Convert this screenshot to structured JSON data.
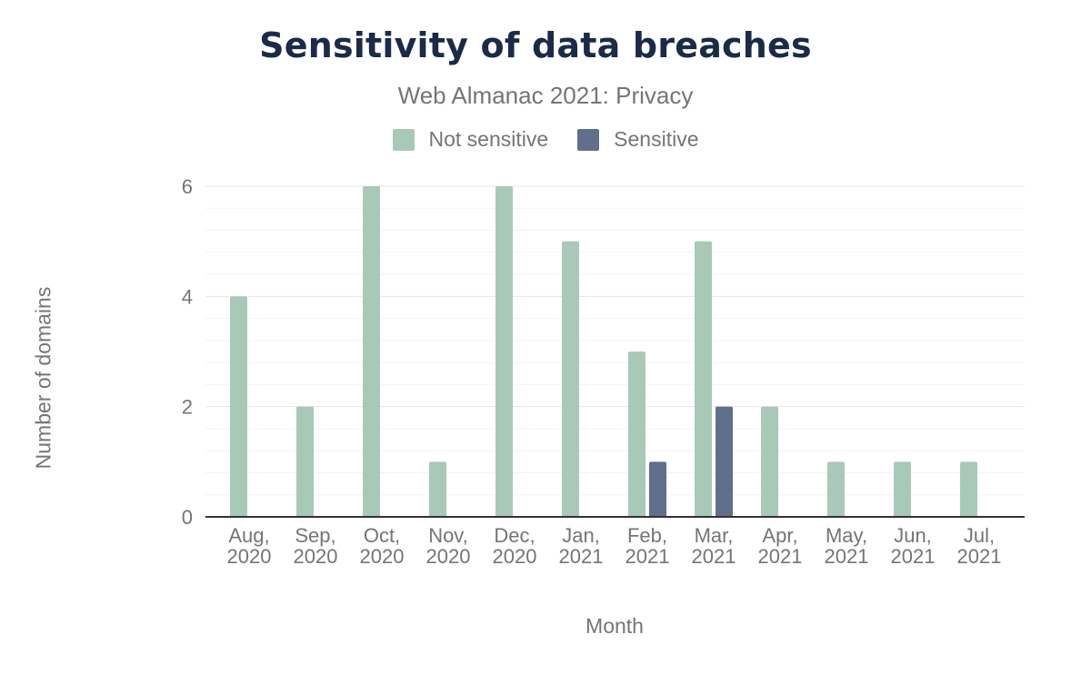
{
  "chart_data": {
    "type": "bar",
    "title": "Sensitivity of data breaches",
    "subtitle": "Web Almanac 2021: Privacy",
    "xlabel": "Month",
    "ylabel": "Number of domains",
    "categories": [
      [
        "Aug,",
        "2020"
      ],
      [
        "Sep,",
        "2020"
      ],
      [
        "Oct,",
        "2020"
      ],
      [
        "Nov,",
        "2020"
      ],
      [
        "Dec,",
        "2020"
      ],
      [
        "Jan,",
        "2021"
      ],
      [
        "Feb,",
        "2021"
      ],
      [
        "Mar,",
        "2021"
      ],
      [
        "Apr,",
        "2021"
      ],
      [
        "May,",
        "2021"
      ],
      [
        "Jun,",
        "2021"
      ],
      [
        "Jul,",
        "2021"
      ]
    ],
    "series": [
      {
        "name": "Not sensitive",
        "color": "#a8c9b8",
        "values": [
          4,
          2,
          6,
          1,
          6,
          5,
          3,
          5,
          2,
          1,
          1,
          1
        ]
      },
      {
        "name": "Sensitive",
        "color": "#5f6f8c",
        "values": [
          0,
          0,
          0,
          0,
          0,
          0,
          1,
          2,
          0,
          0,
          0,
          0
        ]
      }
    ],
    "ylim": [
      0,
      6
    ],
    "yticks": [
      0,
      2,
      4,
      6
    ],
    "grid": true,
    "legend": "top-center"
  }
}
